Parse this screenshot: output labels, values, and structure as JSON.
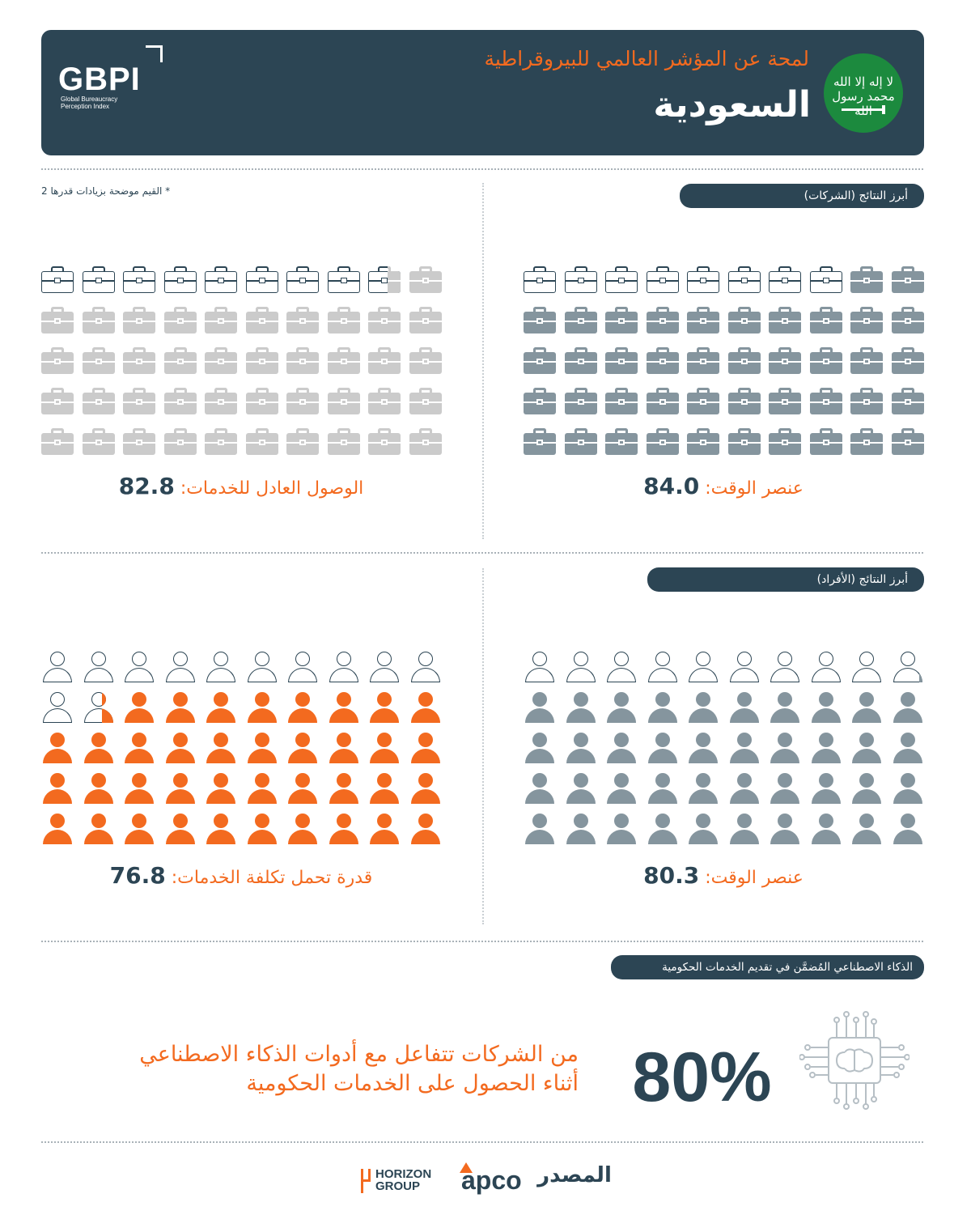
{
  "header": {
    "logo_text": "GBPI",
    "logo_subtitle": "Global Bureaucracy Perception Index",
    "subtitle": "لمحة عن المؤشر العالمي للبيروقراطية",
    "title": "السعودية",
    "flag_text": "لا إله إلا الله محمد رسول الله",
    "flag_color": "#1c8a3e",
    "bg_color": "#2c4554",
    "accent_color": "#f36a1f"
  },
  "footnote": "* القيم موضحة بزيادات قدرها 2",
  "businesses": {
    "pill": "أبرز النتائج (الشركات)",
    "items": [
      {
        "label": "عنصر الوقت:",
        "value": "84.0",
        "score": 84.0,
        "icon": "briefcase-icon",
        "color": "#85959e"
      },
      {
        "label": "الوصول العادل للخدمات:",
        "value": "82.8",
        "score": 82.8,
        "icon": "briefcase-icon",
        "color": "#cbcbcb"
      }
    ]
  },
  "individuals": {
    "pill": "أبرز النتائج (الأفراد)",
    "items": [
      {
        "label": "عنصر الوقت:",
        "value": "80.3",
        "score": 80.3,
        "icon": "person-icon",
        "color": "#85959e"
      },
      {
        "label": "قدرة تحمل تكلفة الخدمات:",
        "value": "76.8",
        "score": 76.8,
        "icon": "person-icon",
        "color": "#f36a1f"
      }
    ]
  },
  "ai": {
    "pill": "الذكاء الاصطناعي المُضمَّن في تقديم الخدمات الحكومية",
    "percent": "80%",
    "line1": "من الشركات تتفاعل مع أدوات الذكاء الاصطناعي",
    "line2": "أثناء الحصول على الخدمات الحكومية",
    "icon": "ai-chip-brain-icon"
  },
  "footer": {
    "logo_horizon_1": "HORIZON",
    "logo_horizon_2": "GROUP",
    "logo_apco": "apco",
    "logo_masdar": "المصدر"
  }
}
